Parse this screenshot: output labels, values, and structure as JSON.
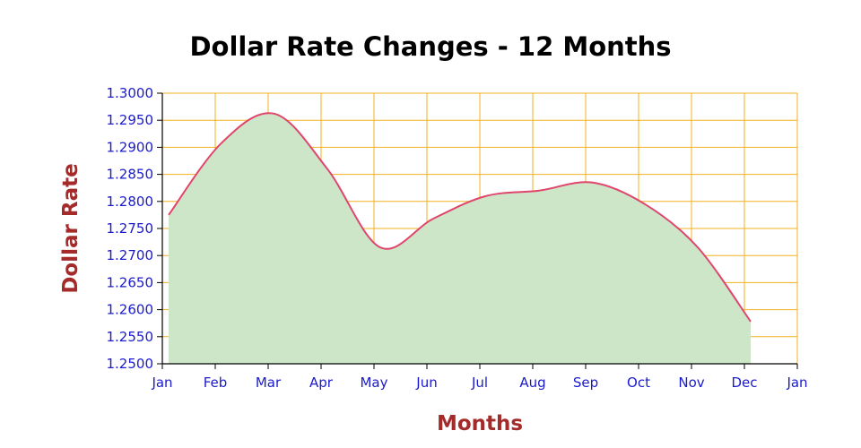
{
  "chart_data": {
    "type": "area",
    "title": "Dollar Rate Changes - 12 Months",
    "xlabel": "Months",
    "ylabel": "Dollar Rate",
    "x_ticks": [
      "Jan",
      "Feb",
      "Mar",
      "Apr",
      "May",
      "Jun",
      "Jul",
      "Aug",
      "Sep",
      "Oct",
      "Nov",
      "Dec",
      "Jan"
    ],
    "y_ticks": [
      "1.3000",
      "1.2950",
      "1.2900",
      "1.2850",
      "1.2800",
      "1.2750",
      "1.2700",
      "1.2650",
      "1.2600",
      "1.2550",
      "1.2500"
    ],
    "ylim": [
      1.25,
      1.3
    ],
    "series": [
      {
        "points": [
          {
            "x": "Jan 1",
            "y": 1.2775
          },
          {
            "x": "Feb 1",
            "y": 1.2908
          },
          {
            "x": "Mar 1",
            "y": 1.2962
          },
          {
            "x": "Apr 1",
            "y": 1.286
          },
          {
            "x": "May 1",
            "y": 1.2715
          },
          {
            "x": "Jun 1",
            "y": 1.2768
          },
          {
            "x": "Jul 1",
            "y": 1.281
          },
          {
            "x": "Aug 1",
            "y": 1.282
          },
          {
            "x": "Sep 1",
            "y": 1.2835
          },
          {
            "x": "Oct 1",
            "y": 1.2795
          },
          {
            "x": "Nov 1",
            "y": 1.2715
          },
          {
            "x": "Dec 1",
            "y": 1.2578
          }
        ]
      }
    ],
    "colors": {
      "line": "#e0456c",
      "area": "#cde6c8",
      "grid": "#f2b01e",
      "tick_text": "#1a1acc",
      "axis_title": "#a52a2a",
      "title": "#000000"
    },
    "grid": true
  }
}
